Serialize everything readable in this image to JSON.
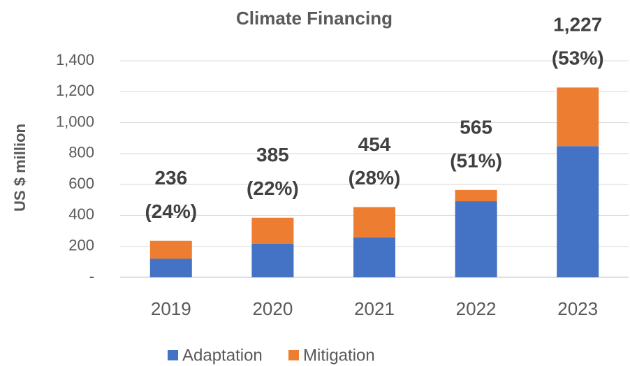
{
  "chart_data": {
    "type": "stacked_bar",
    "title": "Climate Financing",
    "y_label": "US $ million",
    "categories": [
      "2019",
      "2020",
      "2021",
      "2022",
      "2023"
    ],
    "series": [
      {
        "name": "Adaptation",
        "color": "#4472c4",
        "values": [
          120,
          218,
          258,
          492,
          848
        ]
      },
      {
        "name": "Mitigation",
        "color": "#ed7d31",
        "values": [
          116,
          167,
          196,
          73,
          379
        ]
      }
    ],
    "annotations": [
      {
        "total": "236",
        "share": "(24%)"
      },
      {
        "total": "385",
        "share": "(22%)"
      },
      {
        "total": "454",
        "share": "(28%)"
      },
      {
        "total": "565",
        "share": "(51%)"
      },
      {
        "total": "1,227",
        "share": "(53%)"
      }
    ],
    "ylim": [
      0,
      1400
    ],
    "yticks": [
      {
        "value": 0,
        "label": "-"
      },
      200,
      400,
      600,
      800,
      {
        "value": 1000,
        "label": "1,000"
      },
      {
        "value": 1200,
        "label": "1,200"
      },
      {
        "value": 1400,
        "label": "1,400"
      }
    ],
    "grid": true,
    "legend": "bottom"
  }
}
